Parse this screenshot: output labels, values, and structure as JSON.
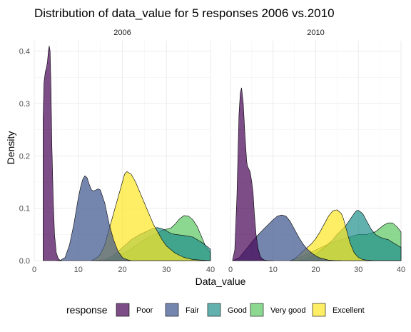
{
  "chart_data": {
    "type": "area",
    "title": "Distribution of data_value for 5 responses 2006 vs.2010",
    "xlabel": "Data_value",
    "ylabel": "Density",
    "xlim": [
      0,
      40
    ],
    "ylim": [
      0,
      0.42
    ],
    "x_ticks": [
      0,
      10,
      20,
      30,
      40
    ],
    "y_ticks": [
      0.0,
      0.1,
      0.2,
      0.3,
      0.4
    ],
    "x_tick_labels": [
      "0",
      "10",
      "20",
      "30",
      "40"
    ],
    "y_tick_labels": [
      "0.0",
      "0.1",
      "0.2",
      "0.3",
      "0.4"
    ],
    "grid": true,
    "legend_title": "response",
    "legend_position": "bottom",
    "series_colors": {
      "Poor": "#440154",
      "Fair": "#3b528b",
      "Good": "#21908c",
      "Very good": "#5dc863",
      "Excellent": "#fde725"
    },
    "legend": [
      {
        "name": "Poor",
        "color": "#440154"
      },
      {
        "name": "Fair",
        "color": "#3b528b"
      },
      {
        "name": "Good",
        "color": "#21908c"
      },
      {
        "name": "Very good",
        "color": "#5dc863"
      },
      {
        "name": "Excellent",
        "color": "#fde725"
      }
    ],
    "panels": [
      {
        "facet_label": "2006",
        "series": [
          {
            "name": "Poor",
            "x": [
              2,
              2.2,
              2.5,
              2.8,
              3,
              3.2,
              3.4,
              3.6,
              3.8,
              4,
              4.3,
              4.6,
              5,
              5.4,
              5.8,
              6.3
            ],
            "y": [
              0.27,
              0.34,
              0.36,
              0.37,
              0.38,
              0.4,
              0.41,
              0.4,
              0.33,
              0.22,
              0.12,
              0.05,
              0.015,
              0.005,
              0.001,
              0
            ]
          },
          {
            "name": "Fair",
            "x": [
              5,
              6,
              7,
              8,
              9,
              10,
              10.5,
              11,
              11.5,
              12,
              12.5,
              13,
              13.5,
              14,
              14.5,
              15,
              16,
              17,
              18,
              19,
              20,
              21,
              22
            ],
            "y": [
              0,
              0.001,
              0.006,
              0.03,
              0.07,
              0.12,
              0.14,
              0.155,
              0.162,
              0.158,
              0.145,
              0.135,
              0.133,
              0.135,
              0.137,
              0.135,
              0.11,
              0.07,
              0.04,
              0.018,
              0.006,
              0.002,
              0
            ]
          },
          {
            "name": "Good",
            "x": [
              14,
              16,
              18,
              20,
              22,
              24,
              26,
              27,
              28,
              29,
              30,
              31,
              32,
              34,
              36,
              38,
              40
            ],
            "y": [
              0,
              0.002,
              0.01,
              0.025,
              0.04,
              0.05,
              0.058,
              0.062,
              0.063,
              0.061,
              0.057,
              0.052,
              0.05,
              0.048,
              0.045,
              0.035,
              0.022
            ]
          },
          {
            "name": "Very good",
            "x": [
              16,
              18,
              20,
              22,
              24,
              26,
              28,
              29,
              30,
              31,
              32,
              33,
              34,
              35,
              36,
              37,
              38,
              39,
              40
            ],
            "y": [
              0,
              0.004,
              0.012,
              0.022,
              0.035,
              0.045,
              0.052,
              0.058,
              0.06,
              0.062,
              0.07,
              0.08,
              0.086,
              0.085,
              0.078,
              0.065,
              0.045,
              0.025,
              0.015
            ]
          },
          {
            "name": "Excellent",
            "x": [
              13,
              14,
              15,
              16,
              17,
              18,
              19,
              20,
              20.5,
              21,
              22,
              23,
              24,
              25,
              26,
              27,
              28,
              29,
              30,
              32,
              34,
              36,
              38,
              40
            ],
            "y": [
              0,
              0.004,
              0.012,
              0.03,
              0.06,
              0.09,
              0.12,
              0.15,
              0.165,
              0.17,
              0.165,
              0.15,
              0.13,
              0.11,
              0.09,
              0.07,
              0.055,
              0.04,
              0.028,
              0.014,
              0.006,
              0.002,
              0.001,
              0
            ]
          }
        ]
      },
      {
        "facet_label": "2010",
        "series": [
          {
            "name": "Poor",
            "x": [
              0.5,
              1,
              1.5,
              2,
              2.3,
              2.6,
              3,
              3.4,
              3.8,
              4,
              4.3,
              4.6,
              5,
              5.3,
              5.6,
              6,
              6.5,
              7,
              7.5,
              8,
              9,
              10
            ],
            "y": [
              0.002,
              0.02,
              0.12,
              0.28,
              0.32,
              0.33,
              0.3,
              0.24,
              0.19,
              0.18,
              0.175,
              0.17,
              0.15,
              0.13,
              0.09,
              0.05,
              0.022,
              0.008,
              0.003,
              0.001,
              0,
              0
            ]
          },
          {
            "name": "Fair",
            "x": [
              0.5,
              2,
              4,
              6,
              8,
              10,
              11,
              12,
              13,
              14,
              15,
              16,
              17,
              18,
              19,
              20,
              21,
              22,
              23,
              24,
              25,
              26
            ],
            "y": [
              0,
              0.005,
              0.025,
              0.045,
              0.062,
              0.078,
              0.085,
              0.087,
              0.085,
              0.075,
              0.06,
              0.045,
              0.032,
              0.022,
              0.015,
              0.009,
              0.005,
              0.003,
              0.001,
              0.0005,
              0,
              0
            ]
          },
          {
            "name": "Good",
            "x": [
              16,
              18,
              20,
              22,
              24,
              25,
              26,
              27,
              28,
              29,
              29.5,
              30,
              31,
              32,
              33,
              34,
              35,
              36,
              37,
              38,
              39,
              40
            ],
            "y": [
              0,
              0.004,
              0.012,
              0.025,
              0.04,
              0.05,
              0.058,
              0.066,
              0.078,
              0.09,
              0.095,
              0.096,
              0.09,
              0.075,
              0.06,
              0.05,
              0.045,
              0.042,
              0.04,
              0.035,
              0.03,
              0.025
            ]
          },
          {
            "name": "Very good",
            "x": [
              14,
              16,
              18,
              20,
              22,
              24,
              26,
              28,
              30,
              32,
              34,
              36,
              37,
              38,
              39,
              40
            ],
            "y": [
              0,
              0.005,
              0.012,
              0.02,
              0.028,
              0.035,
              0.04,
              0.045,
              0.05,
              0.05,
              0.055,
              0.068,
              0.072,
              0.072,
              0.065,
              0.055
            ]
          },
          {
            "name": "Excellent",
            "x": [
              14,
              15,
              16,
              17,
              18,
              19,
              20,
              21,
              22,
              23,
              24,
              25,
              26,
              26.5,
              27,
              28,
              29,
              30,
              31,
              32,
              34,
              36,
              38,
              40
            ],
            "y": [
              0,
              0.003,
              0.01,
              0.018,
              0.025,
              0.032,
              0.042,
              0.055,
              0.07,
              0.085,
              0.095,
              0.097,
              0.09,
              0.08,
              0.065,
              0.035,
              0.015,
              0.006,
              0.002,
              0.001,
              0,
              0,
              0,
              0
            ]
          }
        ]
      }
    ]
  }
}
